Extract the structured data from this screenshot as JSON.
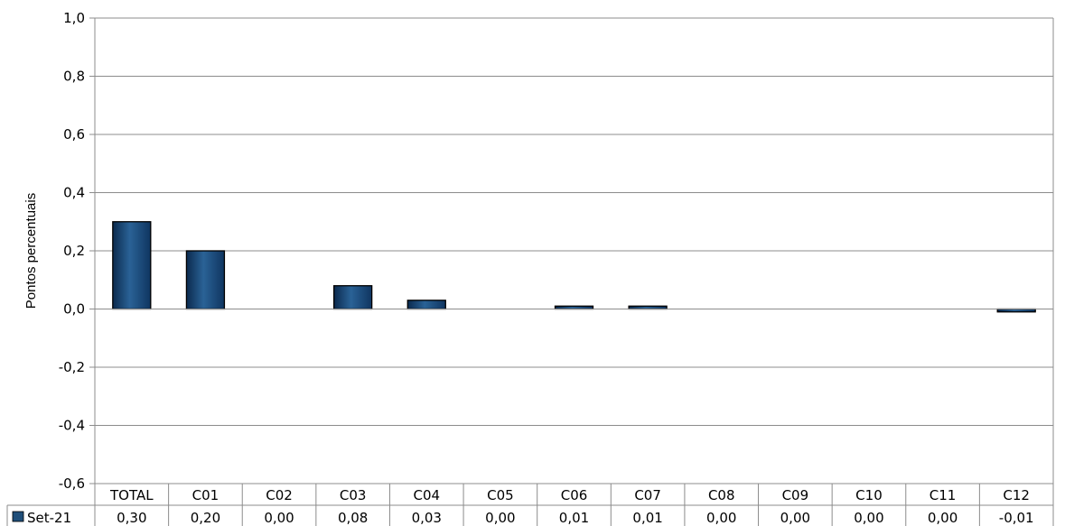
{
  "chart_data": {
    "type": "bar",
    "title": "",
    "ylabel": "Pontos percentuais",
    "xlabel": "",
    "ylim": [
      -0.6,
      1.0
    ],
    "yticks": [
      "1,0",
      "0,8",
      "0,6",
      "0,4",
      "0,2",
      "0,0",
      "-0,2",
      "-0,4",
      "-0,6"
    ],
    "ytick_values": [
      1.0,
      0.8,
      0.6,
      0.4,
      0.2,
      0.0,
      -0.2,
      -0.4,
      -0.6
    ],
    "grid": true,
    "legend": "data-table",
    "categories": [
      "TOTAL",
      "C01",
      "C02",
      "C03",
      "C04",
      "C05",
      "C06",
      "C07",
      "C08",
      "C09",
      "C10",
      "C11",
      "C12"
    ],
    "series": [
      {
        "name": "Set-21",
        "color": "#1f4e79",
        "values": [
          0.3,
          0.2,
          0.0,
          0.08,
          0.03,
          0.0,
          0.01,
          0.01,
          0.0,
          0.0,
          0.0,
          0.0,
          -0.01
        ],
        "labels": [
          "0,30",
          "0,20",
          "0,00",
          "0,08",
          "0,03",
          "0,00",
          "0,01",
          "0,01",
          "0,00",
          "0,00",
          "0,00",
          "0,00",
          "-0,01"
        ]
      }
    ]
  }
}
